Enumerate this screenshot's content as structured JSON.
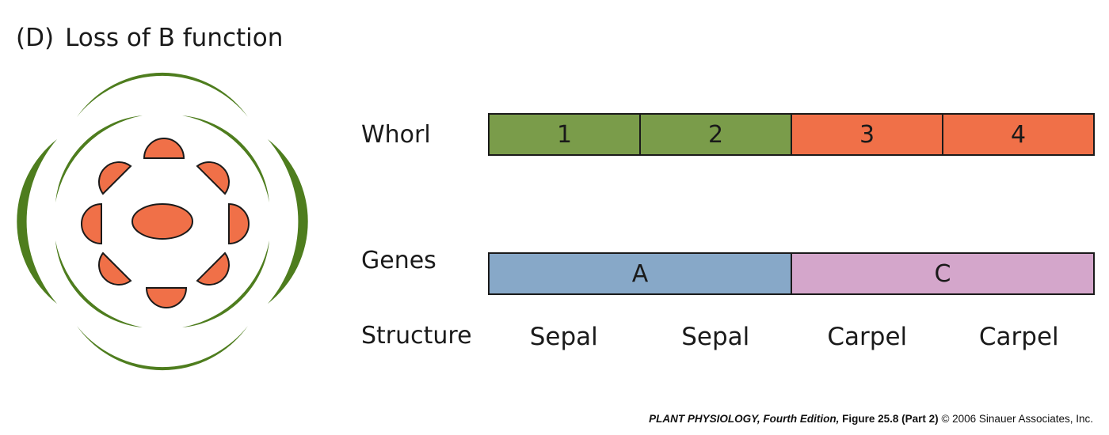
{
  "panel": {
    "label": "(D)",
    "title": "Loss of B function"
  },
  "rows": {
    "whorl_label": "Whorl",
    "genes_label": "Genes",
    "structure_label": "Structure"
  },
  "whorls": [
    {
      "label": "1",
      "color": "#7a9c4a"
    },
    {
      "label": "2",
      "color": "#7a9c4a"
    },
    {
      "label": "3",
      "color": "#f07048"
    },
    {
      "label": "4",
      "color": "#f07048"
    }
  ],
  "genes": [
    {
      "label": "A",
      "color": "#87a8c8"
    },
    {
      "label": "C",
      "color": "#d4a6cb"
    }
  ],
  "structures": [
    "Sepal",
    "Sepal",
    "Carpel",
    "Carpel"
  ],
  "flower_colors": {
    "sepal": "#4e7d1e",
    "carpel": "#f07048"
  },
  "credit": {
    "book": "PLANT PHYSIOLOGY, Fourth Edition,",
    "figure": "Figure 25.8 (Part 2)",
    "copyright": "© 2006 Sinauer Associates, Inc."
  }
}
